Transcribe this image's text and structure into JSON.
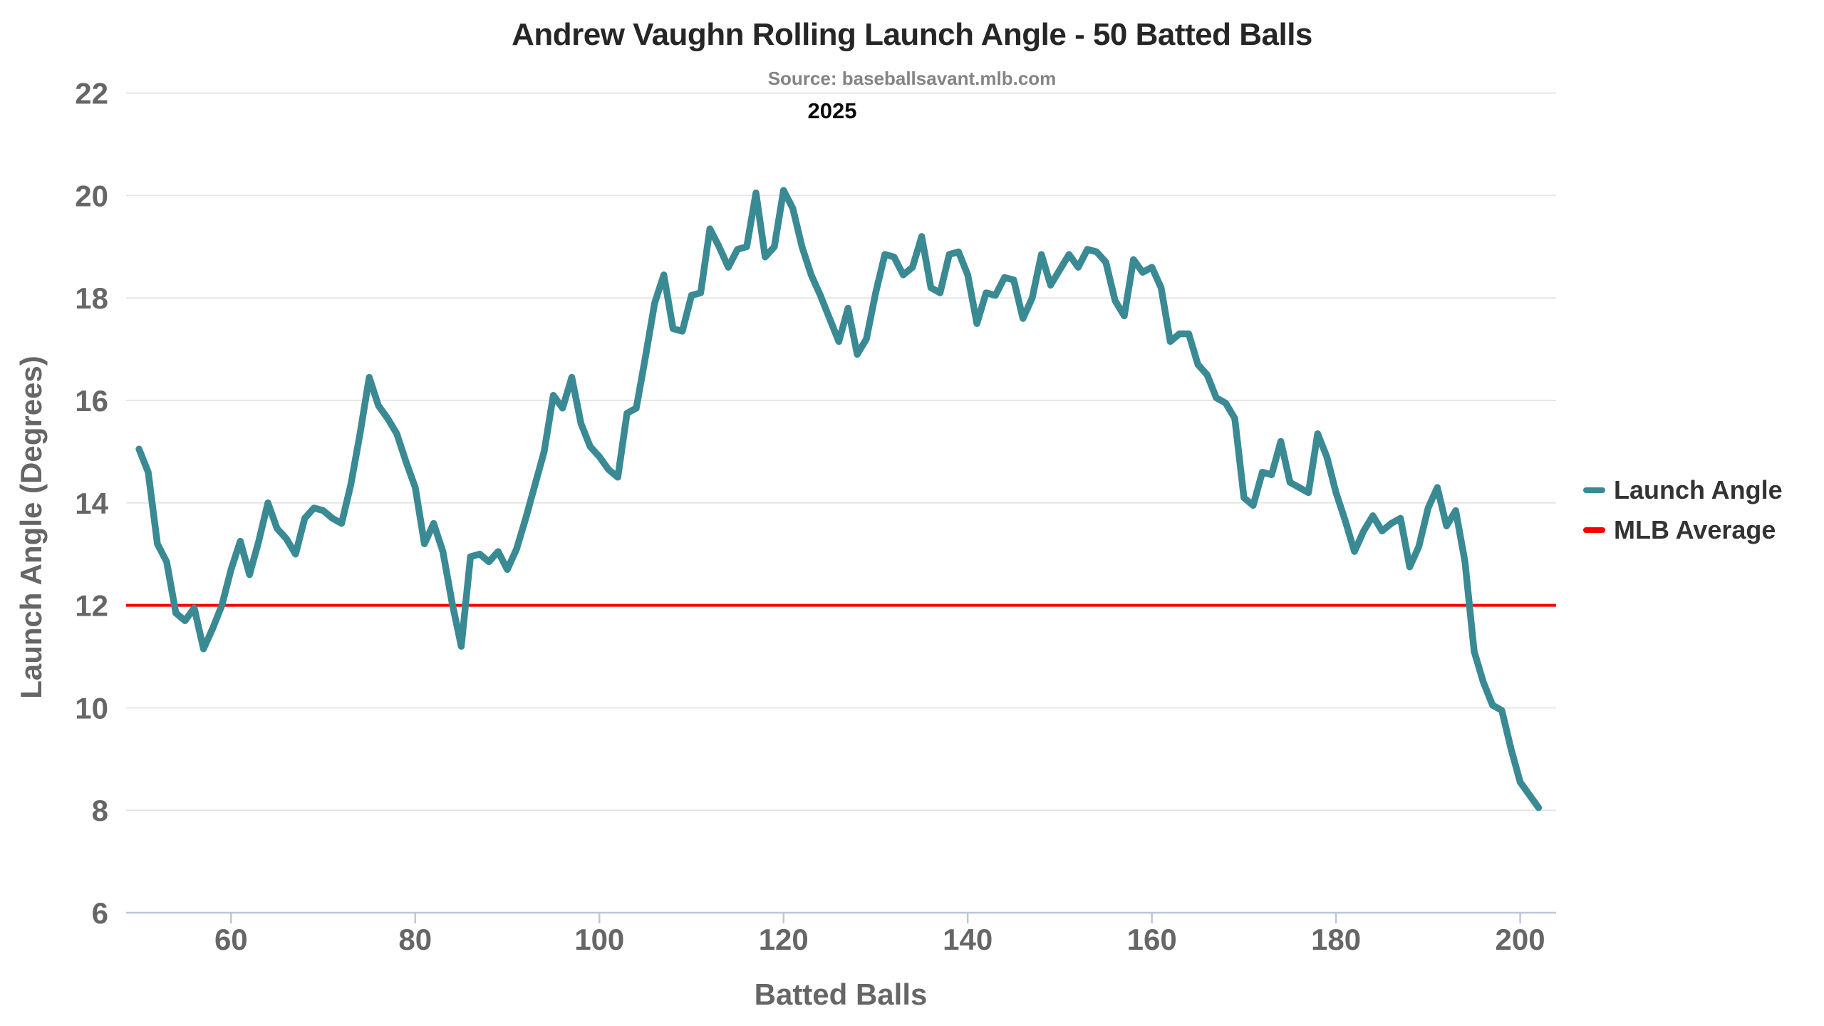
{
  "title": "Andrew Vaughn Rolling Launch Angle - 50 Batted Balls",
  "subtitle": "Source: baseballsavant.mlb.com",
  "year_label": "2025",
  "colors": {
    "launch_angle_line": "#3A8A94",
    "mlb_average_line": "#F70000",
    "gridline": "#E6E6E6",
    "axis_line": "#BBC7D9",
    "tick_label": "#666666",
    "title_text": "#262626",
    "subtitle_text": "#848484",
    "legend_text": "#333333",
    "background": "#FFFFFF"
  },
  "legend": {
    "items": [
      {
        "label": "Launch Angle",
        "color": "#3A8A94"
      },
      {
        "label": "MLB Average",
        "color": "#F70000"
      }
    ]
  },
  "chart_data": {
    "type": "line",
    "title": "Andrew Vaughn Rolling Launch Angle - 50 Batted Balls",
    "subtitle": "Source: baseballsavant.mlb.com",
    "annotation": "2025",
    "xlabel": "Batted Balls",
    "ylabel": "Launch Angle (Degrees)",
    "xlim": [
      48.6,
      203.9
    ],
    "ylim": [
      6,
      22
    ],
    "x_ticks": [
      60,
      80,
      100,
      120,
      140,
      160,
      180,
      200
    ],
    "y_ticks": [
      6,
      8,
      10,
      12,
      14,
      16,
      18,
      20,
      22
    ],
    "grid": "horizontal-only",
    "legend_position": "right-outside",
    "series": [
      {
        "name": "Launch Angle",
        "type": "line",
        "color": "#3A8A94",
        "x": [
          50,
          51,
          52,
          53,
          54,
          55,
          56,
          57,
          58,
          59,
          60,
          61,
          62,
          63,
          64,
          65,
          66,
          67,
          68,
          69,
          70,
          71,
          72,
          73,
          74,
          75,
          76,
          77,
          78,
          79,
          80,
          81,
          82,
          83,
          84,
          85,
          86,
          87,
          88,
          89,
          90,
          91,
          92,
          93,
          94,
          95,
          96,
          97,
          98,
          99,
          100,
          101,
          102,
          103,
          104,
          105,
          106,
          107,
          108,
          109,
          110,
          111,
          112,
          113,
          114,
          115,
          116,
          117,
          118,
          119,
          120,
          121,
          122,
          123,
          124,
          125,
          126,
          127,
          128,
          129,
          130,
          131,
          132,
          133,
          134,
          135,
          136,
          137,
          138,
          139,
          140,
          141,
          142,
          143,
          144,
          145,
          146,
          147,
          148,
          149,
          150,
          151,
          152,
          153,
          154,
          155,
          156,
          157,
          158,
          159,
          160,
          161,
          162,
          163,
          164,
          165,
          166,
          167,
          168,
          169,
          170,
          171,
          172,
          173,
          174,
          175,
          176,
          177,
          178,
          179,
          180,
          181,
          182,
          183,
          184,
          185,
          186,
          187,
          188,
          189,
          190,
          191,
          192,
          193,
          194,
          195,
          196,
          197,
          198,
          199,
          200,
          201,
          202
        ],
        "y": [
          15.05,
          14.6,
          13.2,
          12.85,
          11.85,
          11.7,
          11.95,
          11.15,
          11.55,
          12.0,
          12.7,
          13.25,
          12.6,
          13.25,
          14.0,
          13.5,
          13.3,
          13.0,
          13.7,
          13.9,
          13.85,
          13.7,
          13.6,
          14.35,
          15.35,
          16.45,
          15.9,
          15.65,
          15.35,
          14.8,
          14.3,
          13.2,
          13.6,
          13.05,
          12.05,
          11.2,
          12.95,
          13.0,
          12.85,
          13.05,
          12.7,
          13.1,
          13.7,
          14.35,
          15.0,
          16.1,
          15.85,
          16.45,
          15.55,
          15.1,
          14.9,
          14.65,
          14.5,
          15.75,
          15.85,
          16.85,
          17.9,
          18.45,
          17.4,
          17.35,
          18.05,
          18.1,
          19.35,
          19.0,
          18.6,
          18.95,
          19.0,
          20.05,
          18.8,
          19.0,
          20.1,
          19.75,
          19.0,
          18.45,
          18.05,
          17.6,
          17.15,
          17.8,
          16.9,
          17.2,
          18.1,
          18.85,
          18.8,
          18.45,
          18.6,
          19.2,
          18.2,
          18.1,
          18.85,
          18.9,
          18.45,
          17.5,
          18.1,
          18.05,
          18.4,
          18.35,
          17.6,
          18.0,
          18.85,
          18.25,
          18.55,
          18.85,
          18.6,
          18.95,
          18.9,
          18.7,
          17.95,
          17.65,
          18.75,
          18.5,
          18.6,
          18.2,
          17.15,
          17.3,
          17.3,
          16.7,
          16.5,
          16.05,
          15.95,
          15.65,
          14.1,
          13.95,
          14.6,
          14.55,
          15.2,
          14.4,
          14.3,
          14.2,
          15.35,
          14.9,
          14.2,
          13.65,
          13.05,
          13.45,
          13.75,
          13.45,
          13.6,
          13.7,
          12.75,
          13.15,
          13.9,
          14.3,
          13.55,
          13.85,
          12.85,
          11.1,
          10.5,
          10.05,
          9.95,
          9.2,
          8.55,
          8.3,
          8.05
        ]
      },
      {
        "name": "MLB Average",
        "type": "horizontal-reference-line",
        "color": "#F70000",
        "value": 12
      }
    ]
  }
}
